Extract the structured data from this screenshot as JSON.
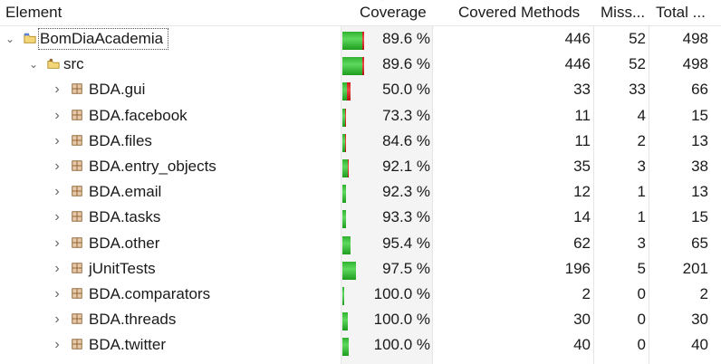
{
  "header": {
    "element": "Element",
    "coverage": "Coverage",
    "covered_methods": "Covered Methods",
    "missed": "Miss...",
    "total": "Total ..."
  },
  "rows": [
    {
      "label": "BomDiaAcademia",
      "coverage": "89.6 %",
      "covered": "446",
      "missed": "52",
      "total": "498",
      "coverage_fraction": 0.896
    },
    {
      "label": "src",
      "coverage": "89.6 %",
      "covered": "446",
      "missed": "52",
      "total": "498",
      "coverage_fraction": 0.896
    },
    {
      "label": "BDA.gui",
      "coverage": "50.0 %",
      "covered": "33",
      "missed": "33",
      "total": "66",
      "coverage_fraction": 0.5
    },
    {
      "label": "BDA.facebook",
      "coverage": "73.3 %",
      "covered": "11",
      "missed": "4",
      "total": "15",
      "coverage_fraction": 0.733
    },
    {
      "label": "BDA.files",
      "coverage": "84.6 %",
      "covered": "11",
      "missed": "2",
      "total": "13",
      "coverage_fraction": 0.846
    },
    {
      "label": "BDA.entry_objects",
      "coverage": "92.1 %",
      "covered": "35",
      "missed": "3",
      "total": "38",
      "coverage_fraction": 0.921
    },
    {
      "label": "BDA.email",
      "coverage": "92.3 %",
      "covered": "12",
      "missed": "1",
      "total": "13",
      "coverage_fraction": 0.923
    },
    {
      "label": "BDA.tasks",
      "coverage": "93.3 %",
      "covered": "14",
      "missed": "1",
      "total": "15",
      "coverage_fraction": 0.933
    },
    {
      "label": "BDA.other",
      "coverage": "95.4 %",
      "covered": "62",
      "missed": "3",
      "total": "65",
      "coverage_fraction": 0.954
    },
    {
      "label": "jUnitTests",
      "coverage": "97.5 %",
      "covered": "196",
      "missed": "5",
      "total": "201",
      "coverage_fraction": 0.975
    },
    {
      "label": "BDA.comparators",
      "coverage": "100.0 %",
      "covered": "2",
      "missed": "0",
      "total": "2",
      "coverage_fraction": 1.0
    },
    {
      "label": "BDA.threads",
      "coverage": "100.0 %",
      "covered": "30",
      "missed": "0",
      "total": "30",
      "coverage_fraction": 1.0
    },
    {
      "label": "BDA.twitter",
      "coverage": "100.0 %",
      "covered": "40",
      "missed": "0",
      "total": "40",
      "coverage_fraction": 1.0
    }
  ],
  "colors": {
    "covered": "#3cc23c",
    "missed": "#e03030"
  },
  "icons": {
    "project": "project-folder-icon",
    "source": "source-folder-icon",
    "package": "package-icon",
    "chevron": "chevron-icon"
  }
}
